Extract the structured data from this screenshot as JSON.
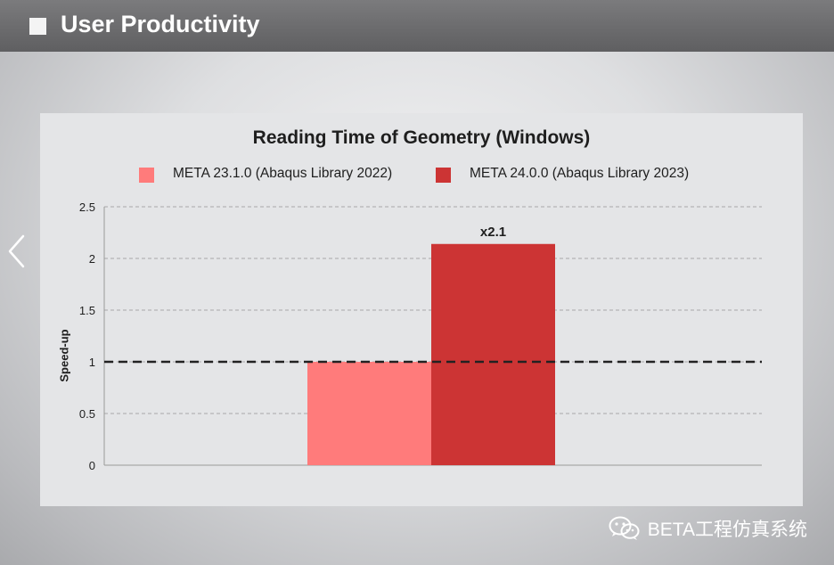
{
  "header": {
    "title": "User Productivity"
  },
  "watermark": {
    "text": "BETA工程仿真系统",
    "icon": "wechat-icon"
  },
  "colors": {
    "series1": "#ff7b7b",
    "series2": "#cc3434",
    "baseline": "#222222",
    "grid": "#a8a8a8"
  },
  "chart_data": {
    "type": "bar",
    "title": "Reading Time of Geometry (Windows)",
    "xlabel": "",
    "ylabel": "Speed-up",
    "ylim": [
      0,
      2.5
    ],
    "yticks": [
      "0",
      "0.5",
      "1",
      "1.5",
      "2",
      "2.5"
    ],
    "grid": true,
    "legend_position": "top",
    "baseline": 1,
    "series": [
      {
        "name": "META 23.1.0 (Abaqus Library 2022)",
        "values": [
          1.0
        ],
        "label": ""
      },
      {
        "name": "META 24.0.0 (Abaqus Library 2023)",
        "values": [
          2.14
        ],
        "label": "x2.1"
      }
    ]
  }
}
